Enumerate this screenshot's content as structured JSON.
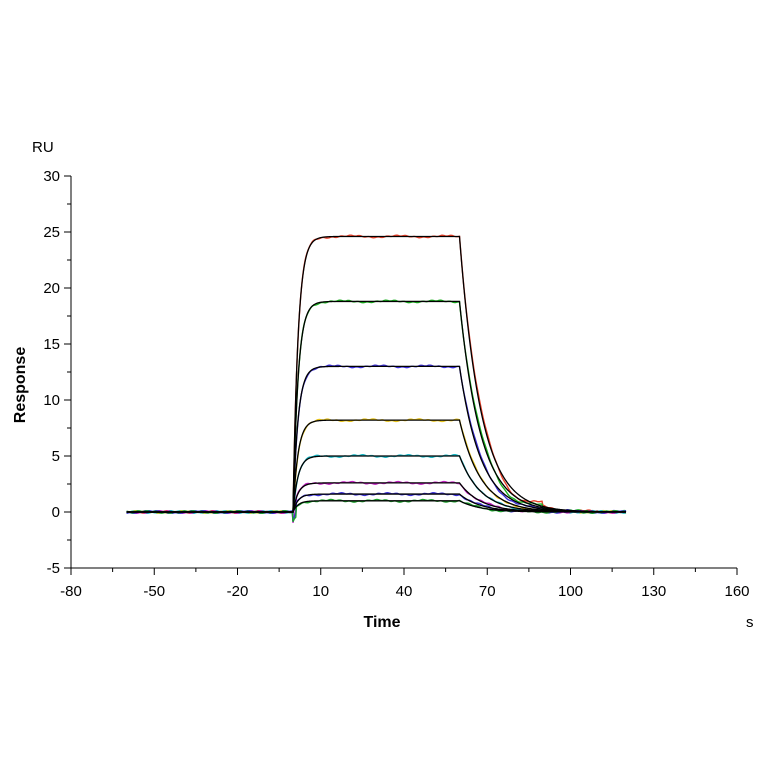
{
  "chart_data": {
    "type": "line",
    "title": "",
    "xlabel": "Time",
    "ylabel": "Response",
    "x_unit": "s",
    "y_unit": "RU",
    "xlim": [
      -80,
      160
    ],
    "ylim": [
      -5,
      30
    ],
    "x_ticks": [
      -80,
      -50,
      -20,
      10,
      40,
      70,
      100,
      130,
      160
    ],
    "y_ticks": [
      -5,
      0,
      5,
      10,
      15,
      20,
      25,
      30
    ],
    "grid": false,
    "legend": "none",
    "association_start": 0,
    "dissociation_start": 60,
    "x_range": [
      -60,
      120
    ],
    "series": [
      {
        "plateau": 24.6,
        "color": "#e8402a"
      },
      {
        "plateau": 18.8,
        "color": "#19b31e"
      },
      {
        "plateau": 13.0,
        "color": "#3b2fd6"
      },
      {
        "plateau": 8.2,
        "color": "#e6c21a"
      },
      {
        "plateau": 5.0,
        "color": "#15b6c4"
      },
      {
        "plateau": 2.6,
        "color": "#c21fc2"
      },
      {
        "plateau": 1.6,
        "color": "#3a30d8"
      },
      {
        "plateau": 1.0,
        "color": "#1a9f2a"
      }
    ],
    "fit_color": "#000000"
  }
}
